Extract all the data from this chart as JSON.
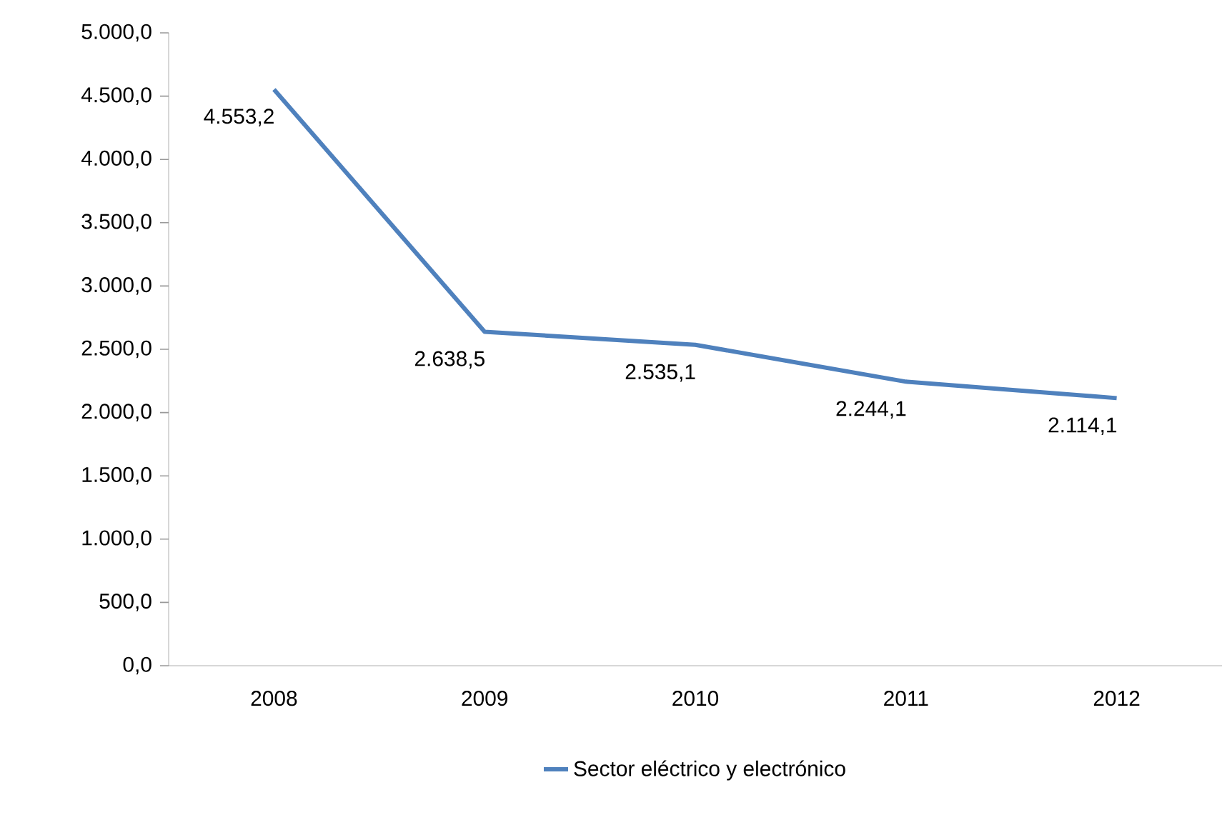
{
  "chart_data": {
    "type": "line",
    "categories": [
      "2008",
      "2009",
      "2010",
      "2011",
      "2012"
    ],
    "series": [
      {
        "name": "Sector eléctrico y electrónico",
        "color": "#4f81bd",
        "values": [
          4553.2,
          2638.5,
          2535.1,
          2244.1,
          2114.1
        ],
        "value_labels": [
          "4.553,2",
          "2.638,5",
          "2.535,1",
          "2.244,1",
          "2.114,1"
        ]
      }
    ],
    "ylim": [
      0,
      5000
    ],
    "yticks": [
      {
        "value": 0,
        "label": "0,0"
      },
      {
        "value": 500,
        "label": "500,0"
      },
      {
        "value": 1000,
        "label": "1.000,0"
      },
      {
        "value": 1500,
        "label": "1.500,0"
      },
      {
        "value": 2000,
        "label": "2.000,0"
      },
      {
        "value": 2500,
        "label": "2.500,0"
      },
      {
        "value": 3000,
        "label": "3.000,0"
      },
      {
        "value": 3500,
        "label": "3.500,0"
      },
      {
        "value": 4000,
        "label": "4.000,0"
      },
      {
        "value": 4500,
        "label": "4.500,0"
      },
      {
        "value": 5000,
        "label": "5.000,0"
      }
    ],
    "grid": false,
    "legend": "bottom",
    "marker": "none",
    "line_style": "solid"
  }
}
